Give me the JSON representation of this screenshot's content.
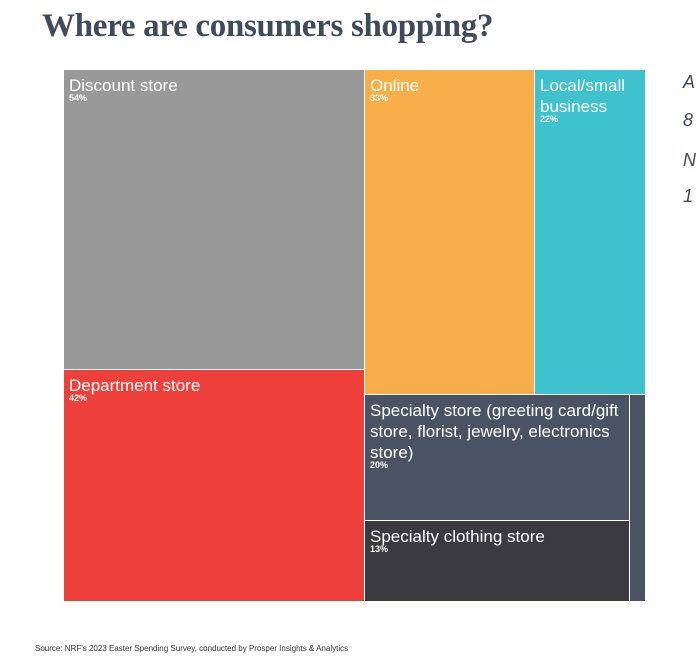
{
  "title": "Where are consumers shopping?",
  "side_text": [
    "A",
    "8",
    "N",
    "1"
  ],
  "source": "Source: NRF's 2023 Easter Spending Survey, conducted by Prosper Insights & Analytics",
  "chart_data": {
    "type": "treemap",
    "items": [
      {
        "name": "Discount store",
        "value": 54,
        "label": "54%",
        "color": "#999999"
      },
      {
        "name": "Department store",
        "value": 42,
        "label": "42%",
        "color": "#ed403b"
      },
      {
        "name": "Online",
        "value": 33,
        "label": "33%",
        "color": "#f8ae49"
      },
      {
        "name": "Local/small business",
        "value": 22,
        "label": "22%",
        "color": "#3ec2ce"
      },
      {
        "name": "Specialty store (greeting card/gift store, florist, jewelry, electronics store)",
        "value": 20,
        "label": "20%",
        "color": "#4a5364"
      },
      {
        "name": "Specialty clothing store",
        "value": 13,
        "label": "13%",
        "color": "#3a3a40"
      },
      {
        "name": "",
        "value": 2,
        "label": "",
        "color": "#4a5364"
      }
    ]
  }
}
